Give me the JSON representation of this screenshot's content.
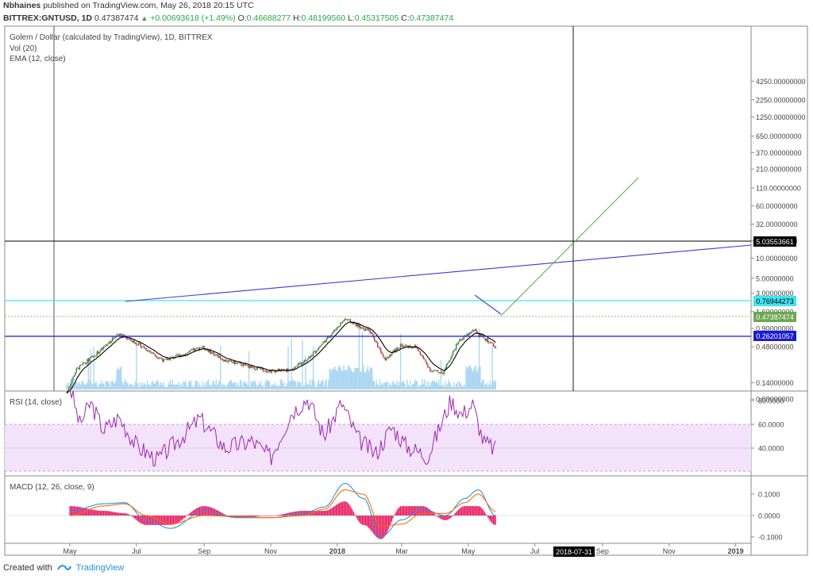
{
  "header": {
    "author": "Nbhaines",
    "published": "published on TradingView.com, May 26, 2018 20:15 UTC",
    "symbol": "BITTREX:GNTUSD, 1D",
    "price": "0.47387474",
    "change": "+0.00693618 (+1.49%)",
    "o_label": "O:",
    "o_value": "0.46688277",
    "h_label": "H:",
    "h_value": "0.48199560",
    "l_label": "L:",
    "l_value": "0.45317505",
    "c_label": "C:",
    "c_value": "0.47387474"
  },
  "legend": {
    "title": "Golem / Dollar (calculated by TradingView), 1D, BITTREX",
    "vol": "Vol (20)",
    "ema": "EMA (12, close)",
    "rsi": "RSI (14, close)",
    "macd": "MACD (12, 26, close, 9)"
  },
  "price_axis_ticks": [
    "4250.00000000",
    "2250.00000000",
    "1250.00000000",
    "650.00000000",
    "370.00000000",
    "210.00000000",
    "110.00000000",
    "60.00000000",
    "32.00000000",
    "18.00000000",
    "10.00000000",
    "5.00000000",
    "3.00000000",
    "1.60000000",
    "0.90000000",
    "0.48000000",
    "0.14000000",
    "0.08000000"
  ],
  "price_badges": {
    "crosshair": "5.03553661",
    "cyan": "0.76944273",
    "last": "0.47387474",
    "support": "0.26201057"
  },
  "rsi_axis_ticks": [
    "80.0000",
    "60.0000",
    "40.0000"
  ],
  "macd_axis_ticks": [
    "0.1000",
    "0.0000",
    "-0.1000"
  ],
  "time_axis_ticks": [
    "May",
    "Jul",
    "Sep",
    "Nov",
    "2018",
    "Mar",
    "May",
    "Jul",
    "Sep",
    "Nov",
    "2019"
  ],
  "time_badge": "2018-07-31",
  "footer": {
    "created": "Created with",
    "brand": "TradingView"
  },
  "colors": {
    "rsi": "#9c27b0",
    "rsi_band": "#f3e3fa",
    "cyan": "#3fe6f0",
    "trend": "#3a3ad8",
    "projection": "#6aa84f",
    "ema": "#000000",
    "macd": "#2196f3",
    "signal": "#ff6d00",
    "hist": "#e91e63",
    "vol": "#90c9ec",
    "up": "#3a8a3a",
    "down": "#b34040"
  },
  "chart_data": [
    {
      "type": "line",
      "name": "price",
      "y_scale": "log",
      "x": [
        "2017-04-28",
        "2017-05-07",
        "2017-05-31",
        "2017-06-14",
        "2017-07-05",
        "2017-07-26",
        "2017-08-15",
        "2017-08-30",
        "2017-09-20",
        "2017-10-10",
        "2017-10-31",
        "2017-11-21",
        "2017-12-10",
        "2017-12-31",
        "2018-01-08",
        "2018-01-31",
        "2018-02-14",
        "2018-02-28",
        "2018-03-14",
        "2018-03-28",
        "2018-04-08",
        "2018-04-22",
        "2018-05-06",
        "2018-05-26"
      ],
      "values": [
        0.1,
        0.22,
        0.45,
        0.75,
        0.5,
        0.3,
        0.38,
        0.48,
        0.3,
        0.25,
        0.21,
        0.22,
        0.38,
        0.9,
        1.25,
        0.8,
        0.32,
        0.5,
        0.48,
        0.21,
        0.2,
        0.58,
        0.85,
        0.47
      ]
    },
    {
      "type": "line",
      "name": "RSI (14, close)",
      "ylim": [
        20,
        100
      ],
      "band": [
        30,
        70
      ],
      "x": [
        "2017-05-01",
        "2017-05-10",
        "2017-05-20",
        "2017-06-01",
        "2017-06-15",
        "2017-07-01",
        "2017-07-20",
        "2017-08-10",
        "2017-08-28",
        "2017-09-20",
        "2017-10-15",
        "2017-11-01",
        "2017-11-20",
        "2017-12-05",
        "2017-12-20",
        "2018-01-05",
        "2018-01-20",
        "2018-02-05",
        "2018-02-20",
        "2018-03-05",
        "2018-03-25",
        "2018-04-15",
        "2018-04-25",
        "2018-05-05",
        "2018-05-15",
        "2018-05-26"
      ],
      "values": [
        92,
        60,
        78,
        55,
        66,
        42,
        30,
        48,
        65,
        40,
        46,
        32,
        70,
        82,
        50,
        78,
        48,
        35,
        58,
        42,
        33,
        80,
        68,
        77,
        45,
        39
      ]
    },
    {
      "type": "line",
      "name": "MACD (12, 26, close, 9)",
      "ylim": [
        -0.13,
        0.17
      ],
      "x": [
        "2017-05-01",
        "2017-06-01",
        "2017-06-20",
        "2017-07-10",
        "2017-08-01",
        "2017-09-01",
        "2017-10-01",
        "2017-11-01",
        "2017-12-01",
        "2017-12-20",
        "2018-01-08",
        "2018-01-25",
        "2018-02-10",
        "2018-03-01",
        "2018-03-20",
        "2018-04-10",
        "2018-04-28",
        "2018-05-10",
        "2018-05-26"
      ],
      "series": [
        {
          "name": "MACD",
          "values": [
            0.02,
            0.055,
            0.06,
            -0.02,
            -0.06,
            0.02,
            -0.01,
            -0.01,
            0.01,
            0.04,
            0.15,
            0.08,
            -0.1,
            -0.02,
            0.03,
            0.0,
            0.08,
            0.12,
            0.0
          ]
        },
        {
          "name": "Signal",
          "values": [
            0.0,
            0.045,
            0.055,
            0.0,
            -0.04,
            0.0,
            -0.005,
            -0.01,
            0.0,
            0.03,
            0.12,
            0.1,
            -0.05,
            -0.04,
            0.01,
            0.01,
            0.06,
            0.1,
            0.02
          ]
        }
      ]
    }
  ]
}
